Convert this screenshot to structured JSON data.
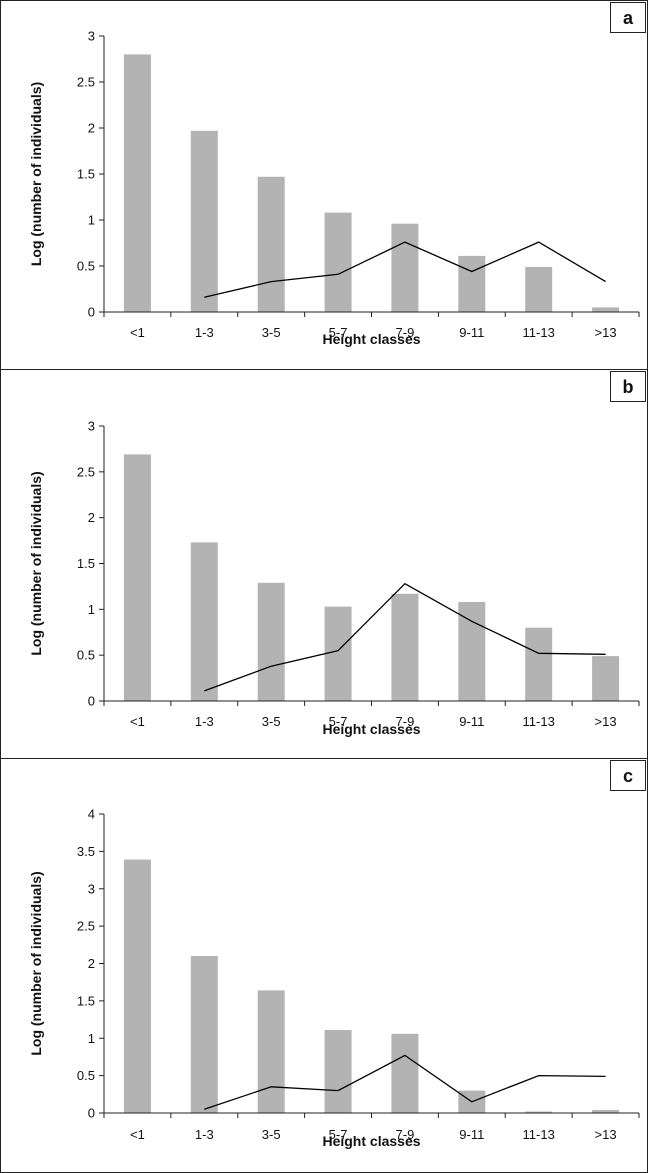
{
  "colors": {
    "bar": "#b3b3b3",
    "line": "#000000",
    "axis": "#222222"
  },
  "chart_data": [
    {
      "type": "bar",
      "panel_label": "a",
      "categories": [
        "<1",
        "1-3",
        "3-5",
        "5-7",
        "7-9",
        "9-11",
        "11-13",
        ">13"
      ],
      "series": [
        {
          "type": "bar",
          "values": [
            2.8,
            1.97,
            1.47,
            1.08,
            0.96,
            0.61,
            0.49,
            0.05
          ]
        },
        {
          "type": "line",
          "values": [
            null,
            0.16,
            0.33,
            0.41,
            0.76,
            0.44,
            0.76,
            0.33
          ]
        }
      ],
      "xlabel": "Height classes",
      "ylabel": "Log (number of individuals)",
      "ylim": [
        0,
        3
      ],
      "yticks": [
        "0",
        "0.5",
        "1",
        "1.5",
        "2",
        "2.5",
        "3"
      ],
      "grid": false
    },
    {
      "type": "bar",
      "panel_label": "b",
      "categories": [
        "<1",
        "1-3",
        "3-5",
        "5-7",
        "7-9",
        "9-11",
        "11-13",
        ">13"
      ],
      "series": [
        {
          "type": "bar",
          "values": [
            2.69,
            1.73,
            1.29,
            1.03,
            1.17,
            1.08,
            0.8,
            0.49
          ]
        },
        {
          "type": "line",
          "values": [
            null,
            0.11,
            0.38,
            0.55,
            1.28,
            0.87,
            0.52,
            0.51
          ]
        }
      ],
      "xlabel": "Height classes",
      "ylabel": "Log (number of individuals)",
      "ylim": [
        0,
        3
      ],
      "yticks": [
        "0",
        "0.5",
        "1",
        "1.5",
        "2",
        "2.5",
        "3"
      ],
      "grid": false
    },
    {
      "type": "bar",
      "panel_label": "c",
      "categories": [
        "<1",
        "1-3",
        "3-5",
        "5-7",
        "7-9",
        "9-11",
        "11-13",
        ">13"
      ],
      "series": [
        {
          "type": "bar",
          "values": [
            3.39,
            2.1,
            1.64,
            1.11,
            1.06,
            0.3,
            0.02,
            0.04
          ]
        },
        {
          "type": "line",
          "values": [
            null,
            0.05,
            0.35,
            0.3,
            0.77,
            0.15,
            0.5,
            0.49
          ]
        }
      ],
      "xlabel": "Height classes",
      "ylabel": "Log (number of individuals)",
      "ylim": [
        0,
        4
      ],
      "yticks": [
        "0",
        "0.5",
        "1",
        "1.5",
        "2",
        "2.5",
        "3",
        "3.5",
        "4"
      ],
      "grid": false
    }
  ]
}
